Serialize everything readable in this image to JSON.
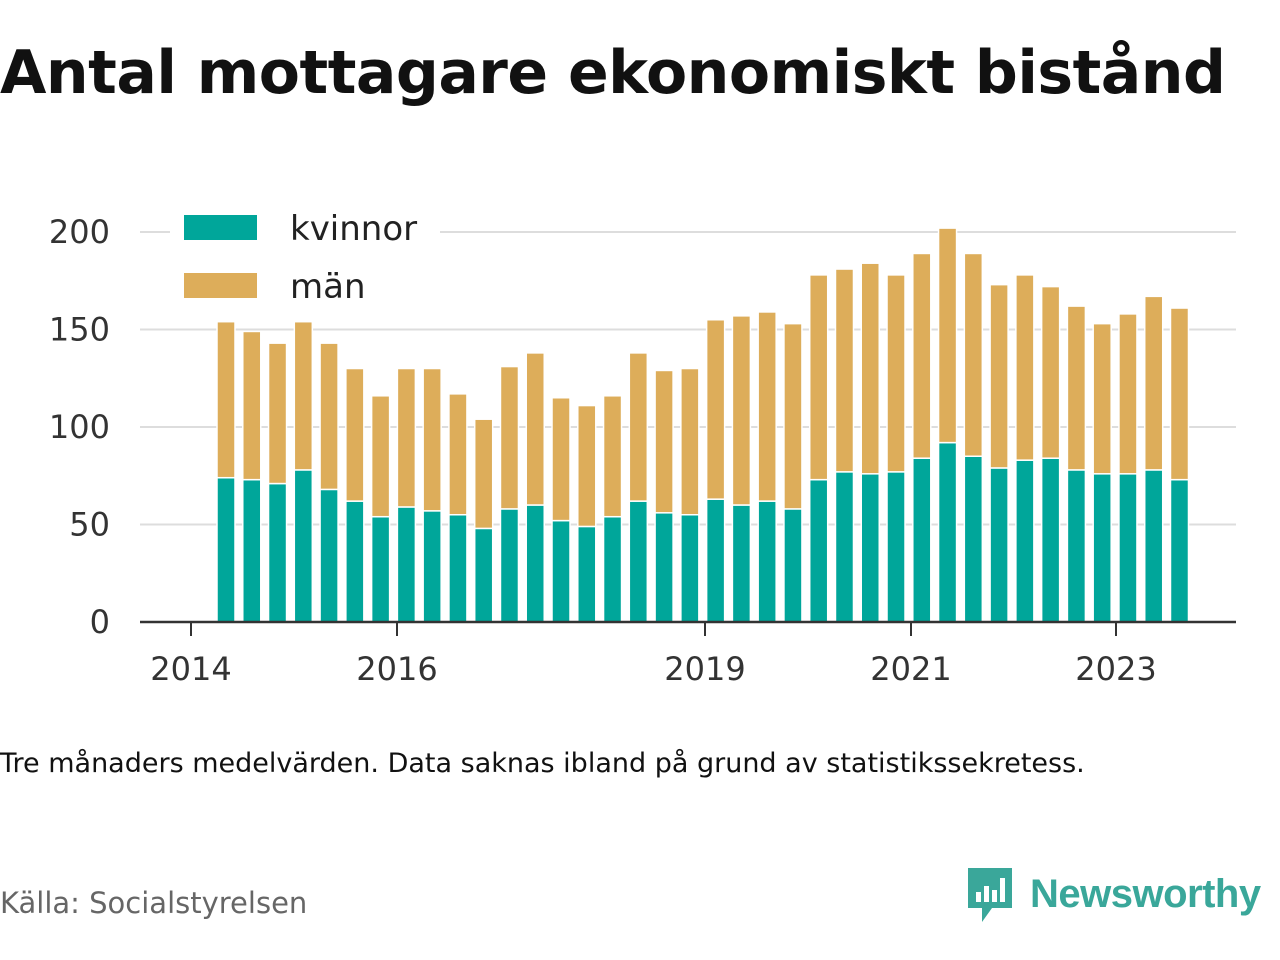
{
  "title": "Antal mottagare ekonomiskt bistånd",
  "note": "Tre månaders medelvärden. Data saknas ibland på grund av statistikssekretess.",
  "source": "Källa: Socialstyrelsen",
  "brand": {
    "name": "Newsworthy",
    "icon": "newsworthy-logo-icon",
    "color": "#3aa79a"
  },
  "chart_data": {
    "type": "bar",
    "stacked": true,
    "ylim": [
      0,
      200
    ],
    "yticks": [
      0,
      50,
      100,
      150,
      200
    ],
    "xticks": [
      "2014",
      "2016",
      "2019",
      "2021",
      "2023"
    ],
    "legend": "top-left",
    "grid": true,
    "series": [
      {
        "name": "kvinnor",
        "color": "#00a69a",
        "values": [
          74,
          73,
          71,
          78,
          68,
          62,
          54,
          59,
          57,
          55,
          48,
          58,
          60,
          52,
          49,
          54,
          62,
          56,
          55,
          63,
          60,
          62,
          58,
          73,
          77,
          76,
          77,
          84,
          92,
          85,
          79,
          83,
          84,
          78,
          76,
          76,
          78,
          73
        ]
      },
      {
        "name": "män",
        "color": "#ddad5a",
        "values": [
          80,
          76,
          72,
          76,
          75,
          68,
          62,
          71,
          73,
          62,
          56,
          73,
          78,
          63,
          62,
          62,
          76,
          73,
          75,
          92,
          97,
          97,
          95,
          105,
          104,
          108,
          101,
          105,
          110,
          104,
          94,
          95,
          88,
          84,
          77,
          82,
          89,
          88
        ]
      }
    ]
  }
}
